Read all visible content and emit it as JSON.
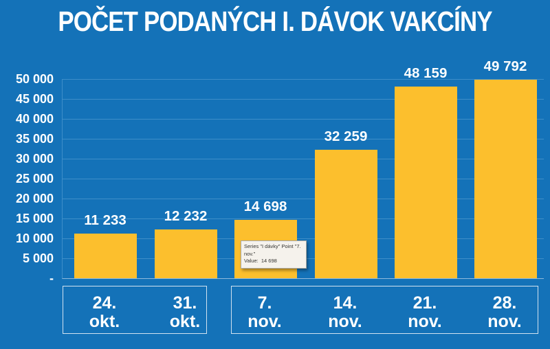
{
  "title": "POČET PODANÝCH I. DÁVOK VAKCÍNY",
  "colors": {
    "background": "#1472B8",
    "bar": "#FCBF2D",
    "gridline": "#3E8EC9",
    "axis_line": "#8FB9DC",
    "text": "#FFFFFF",
    "group_box_border": "#D3E3F0",
    "tooltip_background": "#F5F2EC",
    "tooltip_border": "#ABA9A2",
    "tooltip_text": "#33322F"
  },
  "chart_data": {
    "type": "bar",
    "title": "POČET PODANÝCH I. DÁVOK VAKCÍNY",
    "series": [
      {
        "name": "I dávky",
        "values": [
          11233,
          12232,
          14698,
          32259,
          48159,
          49792
        ]
      }
    ],
    "categories": [
      "24. okt.",
      "31. okt.",
      "7. nov.",
      "14. nov.",
      "21. nov.",
      "28. nov."
    ],
    "category_lines": [
      [
        "24.",
        "okt."
      ],
      [
        "31.",
        "okt."
      ],
      [
        "7.",
        "nov."
      ],
      [
        "14.",
        "nov."
      ],
      [
        "21.",
        "nov."
      ],
      [
        "28.",
        "nov."
      ]
    ],
    "category_groups": [
      [
        0,
        1
      ],
      [
        2,
        3,
        4,
        5
      ]
    ],
    "value_labels": [
      "11 233",
      "12 232",
      "14 698",
      "32 259",
      "48 159",
      "49 792"
    ],
    "y_tick_labels": [
      "50 000",
      "45 000",
      "40 000",
      "35 000",
      "30 000",
      "25 000",
      "20 000",
      "15 000",
      "10 000",
      "5 000",
      "-"
    ],
    "ylim": [
      0,
      50000
    ],
    "y_step": 5000,
    "grid": true,
    "legend": "none"
  },
  "tooltip": {
    "lines": [
      "Series \"I dávky\" Point \"7.",
      "nov.\"",
      "Value:  14 698"
    ]
  }
}
